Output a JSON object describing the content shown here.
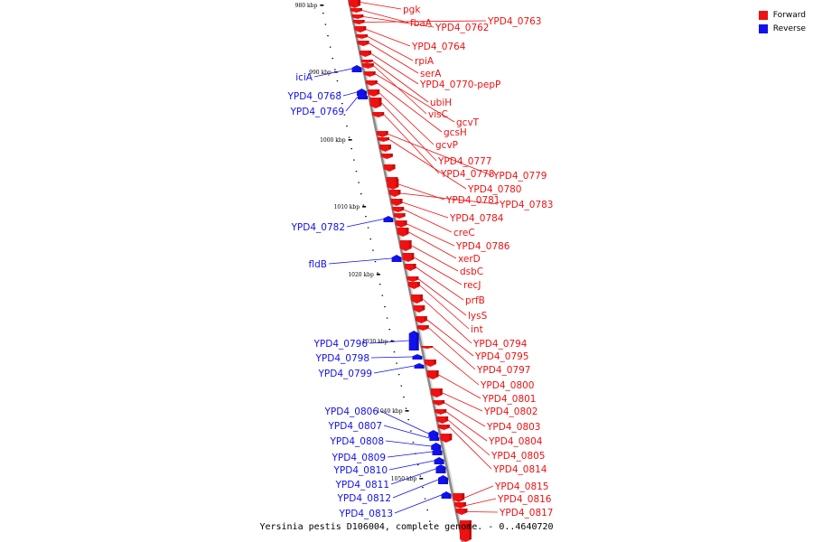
{
  "colors": {
    "forward": "#ee1111",
    "reverse": "#1111ee",
    "axis": "#888888"
  },
  "legend": {
    "items": [
      {
        "label": "Forward",
        "color": "#ee1111"
      },
      {
        "label": "Reverse",
        "color": "#1111ee"
      }
    ]
  },
  "footer": {
    "text": "Yersinia pestis D106004, complete genome. - 0..4640720"
  },
  "ticks": [
    "980 kbp",
    "990 kbp",
    "1000 kbp",
    "1010 kbp",
    "1020 kbp",
    "1030 kbp",
    "1040 kbp",
    "1050 kbp"
  ],
  "forward_genes": [
    "pgk",
    "fbaA",
    "YPD4_0762",
    "YPD4_0763",
    "YPD4_0764",
    "rpiA",
    "serA",
    "YPD4_0770-pepP",
    "ubiH",
    "visC",
    "gcvT",
    "gcsH",
    "gcvP",
    "YPD4_0777",
    "YPD4_0778",
    "YPD4_0779",
    "YPD4_0780",
    "YPD4_0781",
    "YPD4_0783",
    "YPD4_0784",
    "creC",
    "YPD4_0786",
    "xerD",
    "dsbC",
    "recJ",
    "prfB",
    "lysS",
    "int",
    "YPD4_0794",
    "YPD4_0795",
    "YPD4_0797",
    "YPD4_0800",
    "YPD4_0801",
    "YPD4_0802",
    "YPD4_0803",
    "YPD4_0804",
    "YPD4_0805",
    "YPD4_0814",
    "YPD4_0815",
    "YPD4_0816",
    "YPD4_0817"
  ],
  "reverse_genes": [
    "iciA",
    "YPD4_0768",
    "YPD4_0769",
    "YPD4_0782",
    "fldB",
    "YPD4_0796",
    "YPD4_0798",
    "YPD4_0799",
    "YPD4_0806",
    "YPD4_0807",
    "YPD4_0808",
    "YPD4_0809",
    "YPD4_0810",
    "YPD4_0811",
    "YPD4_0812",
    "YPD4_0813"
  ]
}
